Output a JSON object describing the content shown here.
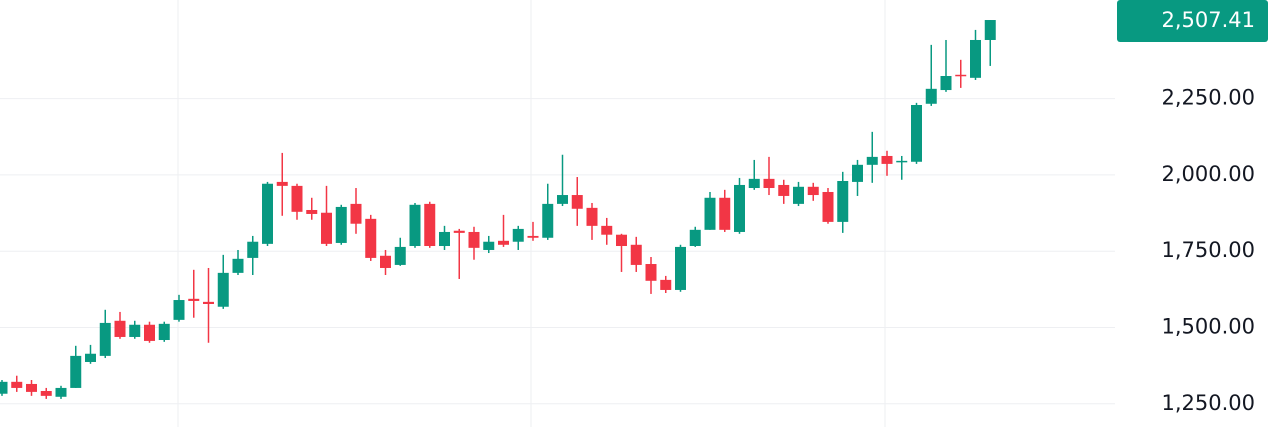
{
  "chart_data": {
    "type": "candlestick",
    "up_color": "#089981",
    "down_color": "#f23645",
    "grid": true,
    "ylim": [
      1174,
      2573
    ],
    "yticks": [
      {
        "value": 1250,
        "label": "1,250.00"
      },
      {
        "value": 1500,
        "label": "1,500.00"
      },
      {
        "value": 1750,
        "label": "1,750.00"
      },
      {
        "value": 2000,
        "label": "2,000.00"
      },
      {
        "value": 2250,
        "label": "2,250.00"
      }
    ],
    "last_price": {
      "value": 2507.41,
      "label": "2,507.41"
    },
    "open": [
      1283,
      1322,
      1315,
      1292,
      1273,
      1302,
      1387,
      1407,
      1522,
      1469,
      1509,
      1459,
      1525,
      1594,
      1584,
      1568,
      1679,
      1728,
      1774,
      1977,
      1964,
      1885,
      1876,
      1777,
      1905,
      1856,
      1735,
      1705,
      1767,
      1905,
      1767,
      1817,
      1813,
      1754,
      1784,
      1781,
      1800,
      1794,
      1905,
      1934,
      1892,
      1833,
      1804,
      1771,
      1708,
      1656,
      1623,
      1767,
      1820,
      1925,
      1813,
      1957,
      1987,
      1967,
      1905,
      1961,
      1944,
      1846,
      1977,
      2033,
      2062,
      2043,
      2043,
      2233,
      2278,
      2328,
      2318,
      2442
    ],
    "high": [
      1328,
      1342,
      1328,
      1302,
      1309,
      1440,
      1443,
      1558,
      1551,
      1522,
      1519,
      1519,
      1607,
      1689,
      1695,
      1738,
      1754,
      1800,
      1977,
      2072,
      1971,
      1925,
      1964,
      1902,
      1957,
      1869,
      1754,
      1794,
      1908,
      1912,
      1833,
      1823,
      1830,
      1800,
      1869,
      1833,
      1846,
      1971,
      2066,
      1993,
      1908,
      1859,
      1807,
      1797,
      1731,
      1669,
      1771,
      1830,
      1944,
      1951,
      1990,
      2049,
      2059,
      1984,
      1977,
      1974,
      1957,
      2010,
      2049,
      2141,
      2079,
      2062,
      2236,
      2426,
      2442,
      2377,
      2475,
      2507.41
    ],
    "low": [
      1276,
      1289,
      1276,
      1266,
      1266,
      1302,
      1381,
      1400,
      1463,
      1463,
      1450,
      1453,
      1519,
      1532,
      1450,
      1561,
      1672,
      1672,
      1767,
      1866,
      1853,
      1853,
      1767,
      1771,
      1807,
      1718,
      1672,
      1702,
      1761,
      1761,
      1754,
      1659,
      1722,
      1744,
      1764,
      1754,
      1784,
      1787,
      1898,
      1833,
      1787,
      1771,
      1682,
      1682,
      1610,
      1613,
      1617,
      1764,
      1820,
      1813,
      1807,
      1951,
      1934,
      1905,
      1898,
      1915,
      1840,
      1810,
      1931,
      1974,
      1997,
      1984,
      2036,
      2226,
      2272,
      2285,
      2311,
      2357
    ],
    "close": [
      1322,
      1302,
      1289,
      1276,
      1302,
      1407,
      1414,
      1515,
      1469,
      1509,
      1456,
      1512,
      1590,
      1587,
      1577,
      1679,
      1725,
      1781,
      1971,
      1964,
      1879,
      1872,
      1774,
      1895,
      1840,
      1728,
      1695,
      1764,
      1902,
      1767,
      1813,
      1810,
      1761,
      1781,
      1771,
      1823,
      1794,
      1905,
      1934,
      1889,
      1833,
      1804,
      1767,
      1705,
      1653,
      1623,
      1764,
      1820,
      1925,
      1820,
      1967,
      1987,
      1957,
      1931,
      1961,
      1934,
      1846,
      1980,
      2033,
      2059,
      2036,
      2046,
      2229,
      2282,
      2324,
      2324,
      2442,
      2507.41
    ]
  }
}
